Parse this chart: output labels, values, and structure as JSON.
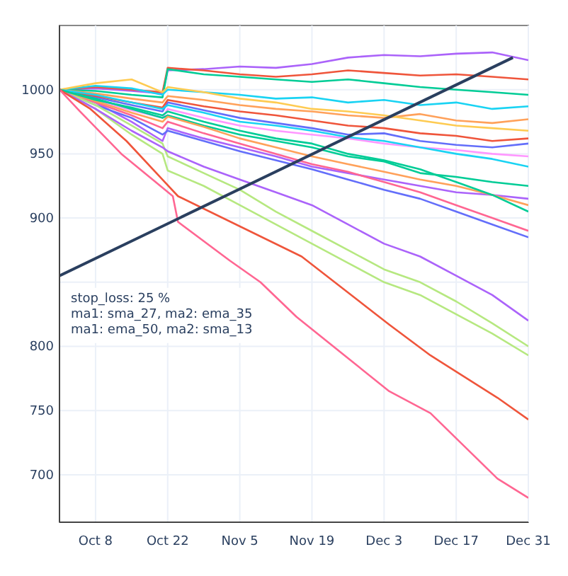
{
  "chart_data": {
    "type": "line",
    "x": [
      "--10-01",
      "--10-08",
      "--10-15",
      "--10-21",
      "--10-22",
      "--10-29",
      "--11-05",
      "--11-12",
      "--11-19",
      "--11-26",
      "--12-03",
      "--12-10",
      "--12-17",
      "--12-24",
      "--12-31"
    ],
    "series": [
      {
        "color": "#ab63fa",
        "values": [
          1000,
          1001,
          999,
          997,
          1015,
          1016,
          1018,
          1017,
          1020,
          1025,
          1027,
          1026,
          1028,
          1029,
          1023
        ]
      },
      {
        "color": "#EF553B",
        "values": [
          1000,
          1002,
          1000,
          998,
          1017,
          1015,
          1012,
          1010,
          1012,
          1015,
          1013,
          1011,
          1012,
          1010,
          1008
        ]
      },
      {
        "color": "#00cc96",
        "values": [
          1000,
          999,
          996,
          994,
          1016,
          1012,
          1010,
          1008,
          1006,
          1008,
          1005,
          1002,
          1000,
          998,
          996
        ]
      },
      {
        "color": "#19d3f3",
        "values": [
          1000,
          1003,
          1001,
          996,
          1000,
          998,
          996,
          993,
          994,
          990,
          992,
          988,
          990,
          985,
          987
        ]
      },
      {
        "color": "#FFA15A",
        "values": [
          1000,
          997,
          993,
          990,
          995,
          992,
          988,
          985,
          983,
          980,
          978,
          981,
          976,
          974,
          977
        ]
      },
      {
        "color": "#636efa",
        "values": [
          1000,
          994,
          988,
          983,
          990,
          984,
          978,
          974,
          970,
          965,
          966,
          960,
          957,
          955,
          958
        ]
      },
      {
        "color": "#FF97FF",
        "values": [
          1000,
          992,
          984,
          978,
          985,
          978,
          972,
          968,
          965,
          962,
          958,
          955,
          953,
          950,
          948
        ]
      },
      {
        "color": "#FECB52",
        "values": [
          1000,
          1005,
          1008,
          998,
          1002,
          998,
          993,
          990,
          985,
          983,
          980,
          976,
          972,
          970,
          968
        ]
      },
      {
        "color": "#EF553B",
        "values": [
          1000,
          995,
          990,
          986,
          992,
          987,
          983,
          980,
          976,
          972,
          970,
          966,
          964,
          960,
          962
        ]
      },
      {
        "color": "#ab63fa",
        "values": [
          1000,
          990,
          975,
          960,
          970,
          962,
          955,
          948,
          940,
          935,
          930,
          925,
          920,
          918,
          915
        ]
      },
      {
        "color": "#00cc96",
        "values": [
          1000,
          993,
          985,
          978,
          980,
          972,
          965,
          960,
          955,
          948,
          944,
          935,
          932,
          928,
          925
        ]
      },
      {
        "color": "#636efa",
        "values": [
          1000,
          988,
          978,
          965,
          968,
          960,
          952,
          945,
          938,
          930,
          922,
          915,
          905,
          895,
          885
        ]
      },
      {
        "color": "#FF6692",
        "values": [
          1000,
          990,
          980,
          970,
          975,
          966,
          958,
          950,
          942,
          936,
          928,
          920,
          910,
          900,
          890
        ]
      },
      {
        "color": "#B6E880",
        "values": [
          1000,
          985,
          965,
          950,
          937,
          925,
          910,
          895,
          880,
          865,
          850,
          840,
          825,
          810,
          793
        ]
      },
      {
        "color": "#B6E880",
        "values": [
          1000,
          988,
          972,
          958,
          948,
          935,
          922,
          905,
          890,
          875,
          860,
          850,
          835,
          818,
          800
        ]
      },
      {
        "color": "#ab63fa",
        "values": [
          1000,
          985,
          968,
          955,
          952,
          940,
          930,
          920,
          910,
          895,
          880,
          870,
          855,
          840,
          820
        ]
      },
      {
        "color": "#19d3f3",
        "values": [
          1000,
          996,
          990,
          985,
          988,
          982,
          975,
          972,
          968,
          963,
          960,
          955,
          950,
          946,
          940
        ]
      },
      {
        "color": "#FFA15A",
        "values": [
          1000,
          991,
          982,
          975,
          979,
          971,
          962,
          955,
          948,
          942,
          936,
          930,
          925,
          918,
          910
        ]
      },
      {
        "color": "#00cc96",
        "values": [
          1000,
          992,
          986,
          980,
          983,
          975,
          968,
          962,
          958,
          950,
          945,
          938,
          928,
          918,
          905
        ]
      },
      {
        "color": "#EF553B",
        "x": [
          "--10-01",
          "--10-07",
          "--10-14",
          "--10-24",
          "--11-17",
          "--12-04",
          "--12-12",
          "--12-25",
          "--12-31"
        ],
        "values": [
          1000,
          985,
          960,
          917,
          870,
          817,
          793,
          760,
          743
        ]
      },
      {
        "color": "#FF6692",
        "x": [
          "--10-01",
          "--10-05",
          "--10-13",
          "--10-23",
          "--10-24",
          "--11-03",
          "--11-09",
          "--11-16",
          "--12-04",
          "--12-12",
          "--12-25",
          "--12-31"
        ],
        "values": [
          1000,
          983,
          950,
          917,
          897,
          867,
          850,
          823,
          765,
          748,
          697,
          682
        ]
      },
      {
        "color": "#2a3f5f",
        "x": [
          "--10-01",
          "--12-28"
        ],
        "values": [
          855,
          1025
        ]
      }
    ],
    "xlim": [
      "--10-01",
      "--12-31"
    ],
    "xticks": [
      {
        "value": "--10-08",
        "label": "Oct 8"
      },
      {
        "value": "--10-22",
        "label": "Oct 22"
      },
      {
        "value": "--11-05",
        "label": "Nov 5"
      },
      {
        "value": "--11-19",
        "label": "Nov 19"
      },
      {
        "value": "--12-03",
        "label": "Dec 3"
      },
      {
        "value": "--12-17",
        "label": "Dec 17"
      },
      {
        "value": "--12-31",
        "label": "Dec 31"
      }
    ],
    "ylim": [
      663,
      1050
    ],
    "yticks": [
      700,
      750,
      800,
      {
        "value": 850,
        "label": null
      },
      900,
      950,
      1000
    ],
    "grid": true,
    "annotations": [
      "stop_loss: 25 %",
      "ma1: sma_27, ma2: ema_35",
      "ma1: ema_50, ma2: sma_13"
    ]
  }
}
